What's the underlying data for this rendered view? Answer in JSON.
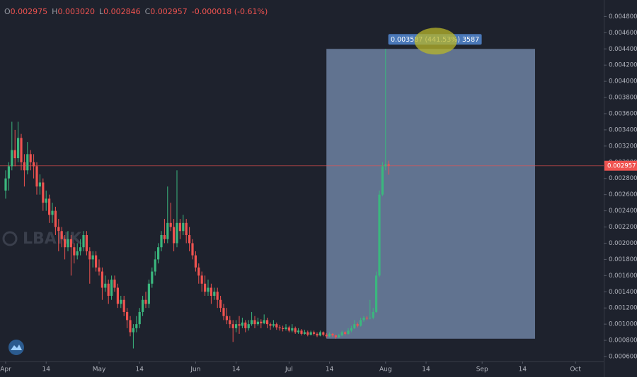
{
  "chart_data": {
    "type": "candlestick",
    "watermark": "LBANK",
    "legend": [
      {
        "key": "O",
        "value": "0.002975"
      },
      {
        "key": "H",
        "value": "0.003020"
      },
      {
        "key": "L",
        "value": "0.002846"
      },
      {
        "key": "C",
        "value": "0.002957"
      }
    ],
    "change": "-0.000018 (-0.61%)",
    "up_color": "#3bb77e",
    "down_color": "#ef5350",
    "x": [
      0,
      1,
      2,
      3,
      4,
      5,
      6,
      7,
      8,
      9,
      10,
      11,
      12,
      13,
      14,
      15,
      16,
      17,
      18,
      19,
      20,
      21,
      22,
      23,
      24,
      25,
      26,
      27,
      28,
      29,
      30,
      31,
      32,
      33,
      34,
      35,
      36,
      37,
      38,
      39,
      40,
      41,
      42,
      43,
      44,
      45,
      46,
      47,
      48,
      49,
      50,
      51,
      52,
      53,
      54,
      55,
      56,
      57,
      58,
      59,
      60,
      61,
      62,
      63,
      64,
      65,
      66,
      67,
      68,
      69,
      70,
      71,
      72,
      73,
      74,
      75,
      76,
      77,
      78,
      79,
      80,
      81,
      82,
      83,
      84,
      85,
      86,
      87,
      88,
      89,
      90,
      91,
      92,
      93,
      94,
      95,
      96,
      97,
      98,
      99,
      100,
      101,
      102,
      103,
      104,
      105,
      106,
      107,
      108,
      109,
      110,
      111,
      112,
      113,
      114,
      115,
      116,
      117,
      118,
      119,
      120,
      121,
      122,
      123
    ],
    "open": [
      0.00265,
      0.0028,
      0.00295,
      0.00315,
      0.00305,
      0.0033,
      0.003,
      0.0029,
      0.0031,
      0.003,
      0.00295,
      0.0027,
      0.00275,
      0.0025,
      0.00255,
      0.00235,
      0.0024,
      0.0022,
      0.00215,
      0.00205,
      0.00195,
      0.00205,
      0.00195,
      0.00185,
      0.0019,
      0.00195,
      0.0021,
      0.0019,
      0.0018,
      0.00185,
      0.0017,
      0.00165,
      0.00145,
      0.0015,
      0.00135,
      0.00155,
      0.00145,
      0.00125,
      0.0013,
      0.00115,
      0.00105,
      0.0009,
      0.00095,
      0.001,
      0.00115,
      0.0013,
      0.00125,
      0.0015,
      0.00165,
      0.0018,
      0.00195,
      0.0021,
      0.00205,
      0.00225,
      0.0022,
      0.002,
      0.00225,
      0.00215,
      0.00225,
      0.0021,
      0.002,
      0.00185,
      0.0017,
      0.0016,
      0.0015,
      0.0014,
      0.00145,
      0.00135,
      0.0014,
      0.0013,
      0.0012,
      0.0011,
      0.00105,
      0.001,
      0.00095,
      0.001,
      0.00098,
      0.00102,
      0.00095,
      0.001,
      0.00105,
      0.001,
      0.00103,
      0.00101,
      0.00105,
      0.001,
      0.00098,
      0.001,
      0.00096,
      0.00095,
      0.00094,
      0.00096,
      0.00092,
      0.00095,
      0.0009,
      0.00092,
      0.00088,
      0.0009,
      0.00087,
      0.0009,
      0.00088,
      0.00086,
      0.0009,
      0.00087,
      0.00085,
      0.00088,
      0.00086,
      0.00084,
      0.00086,
      0.0009,
      0.00088,
      0.00092,
      0.00095,
      0.001,
      0.00098,
      0.00105,
      0.00108,
      0.00107,
      0.00108,
      0.00115,
      0.0016,
      0.0026,
      0.00295,
      0.002975
    ],
    "high": [
      0.0029,
      0.003,
      0.0035,
      0.0034,
      0.0035,
      0.00335,
      0.0031,
      0.00325,
      0.00315,
      0.0031,
      0.003,
      0.00285,
      0.0028,
      0.00265,
      0.0026,
      0.0025,
      0.00245,
      0.0023,
      0.0022,
      0.0021,
      0.00215,
      0.0021,
      0.002,
      0.002,
      0.00205,
      0.00215,
      0.00215,
      0.00195,
      0.0019,
      0.0019,
      0.0018,
      0.0017,
      0.0016,
      0.00155,
      0.0016,
      0.0016,
      0.0015,
      0.00135,
      0.00135,
      0.0012,
      0.0011,
      0.001,
      0.0011,
      0.0012,
      0.00135,
      0.0014,
      0.00155,
      0.0017,
      0.0019,
      0.002,
      0.00215,
      0.0023,
      0.0027,
      0.0025,
      0.0023,
      0.0029,
      0.0023,
      0.00235,
      0.0023,
      0.0022,
      0.00205,
      0.0019,
      0.00175,
      0.00165,
      0.0016,
      0.00155,
      0.0015,
      0.00145,
      0.00145,
      0.00135,
      0.00125,
      0.0012,
      0.0011,
      0.00105,
      0.00105,
      0.0011,
      0.00108,
      0.00105,
      0.00105,
      0.00115,
      0.0011,
      0.00108,
      0.00106,
      0.00112,
      0.00108,
      0.00102,
      0.00105,
      0.00102,
      0.00099,
      0.00098,
      0.001,
      0.00098,
      0.001,
      0.00097,
      0.00095,
      0.00094,
      0.00093,
      0.00092,
      0.00092,
      0.00092,
      0.0009,
      0.00092,
      0.00091,
      0.00089,
      0.0009,
      0.00089,
      0.00087,
      0.00088,
      0.00092,
      0.00091,
      0.00095,
      0.00098,
      0.00105,
      0.00102,
      0.00108,
      0.0011,
      0.0011,
      0.0013,
      0.0012,
      0.00165,
      0.00265,
      0.003,
      0.0044,
      0.00302
    ],
    "low": [
      0.00255,
      0.00265,
      0.0029,
      0.00295,
      0.003,
      0.0029,
      0.0027,
      0.00285,
      0.0029,
      0.0028,
      0.0026,
      0.0026,
      0.0024,
      0.0024,
      0.00225,
      0.00225,
      0.0021,
      0.0019,
      0.00195,
      0.0018,
      0.0019,
      0.0016,
      0.00175,
      0.0018,
      0.00185,
      0.0019,
      0.00185,
      0.0015,
      0.0017,
      0.00165,
      0.0016,
      0.0013,
      0.0014,
      0.00125,
      0.0013,
      0.0014,
      0.0012,
      0.0012,
      0.0011,
      0.00095,
      0.00085,
      0.0007,
      0.0009,
      0.00095,
      0.0011,
      0.0012,
      0.0012,
      0.00145,
      0.0016,
      0.00175,
      0.0019,
      0.002,
      0.002,
      0.00215,
      0.0019,
      0.00195,
      0.00205,
      0.0021,
      0.002,
      0.0019,
      0.0018,
      0.00165,
      0.0015,
      0.0014,
      0.00135,
      0.00135,
      0.00125,
      0.0013,
      0.0012,
      0.00115,
      0.00105,
      0.001,
      0.00095,
      0.00078,
      0.0009,
      0.00088,
      0.00095,
      0.0009,
      0.00092,
      0.00098,
      0.00095,
      0.00098,
      0.00095,
      0.001,
      0.00095,
      0.00093,
      0.00096,
      0.00093,
      0.00092,
      0.00091,
      0.00092,
      0.0009,
      0.0009,
      0.00088,
      0.00088,
      0.00086,
      0.00087,
      0.00085,
      0.00086,
      0.00086,
      0.00084,
      0.00085,
      0.00085,
      0.00083,
      0.00084,
      0.00084,
      0.00082,
      0.00083,
      0.00085,
      0.00086,
      0.00087,
      0.0009,
      0.00094,
      0.00096,
      0.00097,
      0.00103,
      0.00105,
      0.00106,
      0.00106,
      0.00114,
      0.00158,
      0.00258,
      0.0029,
      0.002846
    ],
    "close": [
      0.0028,
      0.00295,
      0.00315,
      0.00305,
      0.0033,
      0.003,
      0.0029,
      0.0031,
      0.003,
      0.00295,
      0.0027,
      0.00275,
      0.0025,
      0.00255,
      0.00235,
      0.0024,
      0.0022,
      0.00215,
      0.00205,
      0.00195,
      0.00205,
      0.00195,
      0.00185,
      0.0019,
      0.00195,
      0.0021,
      0.0019,
      0.0018,
      0.00185,
      0.0017,
      0.00165,
      0.00145,
      0.0015,
      0.00135,
      0.00155,
      0.00145,
      0.00125,
      0.0013,
      0.00115,
      0.00105,
      0.0009,
      0.00095,
      0.001,
      0.00115,
      0.0013,
      0.00125,
      0.0015,
      0.00165,
      0.0018,
      0.00195,
      0.0021,
      0.00205,
      0.00225,
      0.0022,
      0.002,
      0.00225,
      0.00215,
      0.00225,
      0.0021,
      0.002,
      0.00185,
      0.0017,
      0.0016,
      0.0015,
      0.0014,
      0.00145,
      0.00135,
      0.0014,
      0.0013,
      0.0012,
      0.0011,
      0.00105,
      0.001,
      0.00095,
      0.001,
      0.00098,
      0.00102,
      0.00095,
      0.001,
      0.00105,
      0.001,
      0.00103,
      0.00101,
      0.00105,
      0.001,
      0.00098,
      0.001,
      0.00096,
      0.00095,
      0.00094,
      0.00096,
      0.00092,
      0.00095,
      0.0009,
      0.00092,
      0.00088,
      0.0009,
      0.00087,
      0.0009,
      0.00088,
      0.00086,
      0.0009,
      0.00087,
      0.00085,
      0.00088,
      0.00086,
      0.00084,
      0.00086,
      0.0009,
      0.00088,
      0.00092,
      0.00095,
      0.001,
      0.00098,
      0.00105,
      0.00108,
      0.00107,
      0.00108,
      0.00115,
      0.0016,
      0.0026,
      0.00295,
      0.002975,
      0.002957
    ],
    "last_price": 0.002957,
    "measure": {
      "x": [
        103,
        170
      ],
      "y": [
        0.00082,
        0.0044
      ],
      "label": "0.003587 (441.53%) 3587",
      "color": "#7d95bb"
    },
    "xlim": [
      -1.82,
      192.05
    ],
    "xticks": [
      {
        "value": 0,
        "label": "Apr"
      },
      {
        "value": 13,
        "label": "14"
      },
      {
        "value": 30,
        "label": "May"
      },
      {
        "value": 43,
        "label": "14"
      },
      {
        "value": 61,
        "label": "Jun"
      },
      {
        "value": 74,
        "label": "14"
      },
      {
        "value": 91,
        "label": "Jul"
      },
      {
        "value": 104,
        "label": "14"
      },
      {
        "value": 122,
        "label": "Aug"
      },
      {
        "value": 135,
        "label": "14"
      },
      {
        "value": 153,
        "label": "Sep"
      },
      {
        "value": 166,
        "label": "14"
      },
      {
        "value": 183,
        "label": "Oct"
      }
    ],
    "ylim": [
      0.000539,
      0.005004
    ],
    "yticks": [
      {
        "value": 0.0006,
        "label": "0.000600"
      },
      {
        "value": 0.0008,
        "label": "0.000800"
      },
      {
        "value": 0.001,
        "label": "0.001000"
      },
      {
        "value": 0.0012,
        "label": "0.001200"
      },
      {
        "value": 0.0014,
        "label": "0.001400"
      },
      {
        "value": 0.0016,
        "label": "0.001600"
      },
      {
        "value": 0.0018,
        "label": "0.001800"
      },
      {
        "value": 0.002,
        "label": "0.002000"
      },
      {
        "value": 0.0022,
        "label": "0.002200"
      },
      {
        "value": 0.0024,
        "label": "0.002400"
      },
      {
        "value": 0.0026,
        "label": "0.002600"
      },
      {
        "value": 0.0028,
        "label": "0.002800"
      },
      {
        "value": 0.003,
        "label": "0.003000"
      },
      {
        "value": 0.0032,
        "label": "0.003200"
      },
      {
        "value": 0.0034,
        "label": "0.003400"
      },
      {
        "value": 0.0036,
        "label": "0.003600"
      },
      {
        "value": 0.0038,
        "label": "0.003800"
      },
      {
        "value": 0.004,
        "label": "0.004000"
      },
      {
        "value": 0.0042,
        "label": "0.004200"
      },
      {
        "value": 0.0044,
        "label": "0.004400"
      },
      {
        "value": 0.0046,
        "label": "0.004600"
      },
      {
        "value": 0.0048,
        "label": "0.004800"
      }
    ],
    "grid": false
  }
}
